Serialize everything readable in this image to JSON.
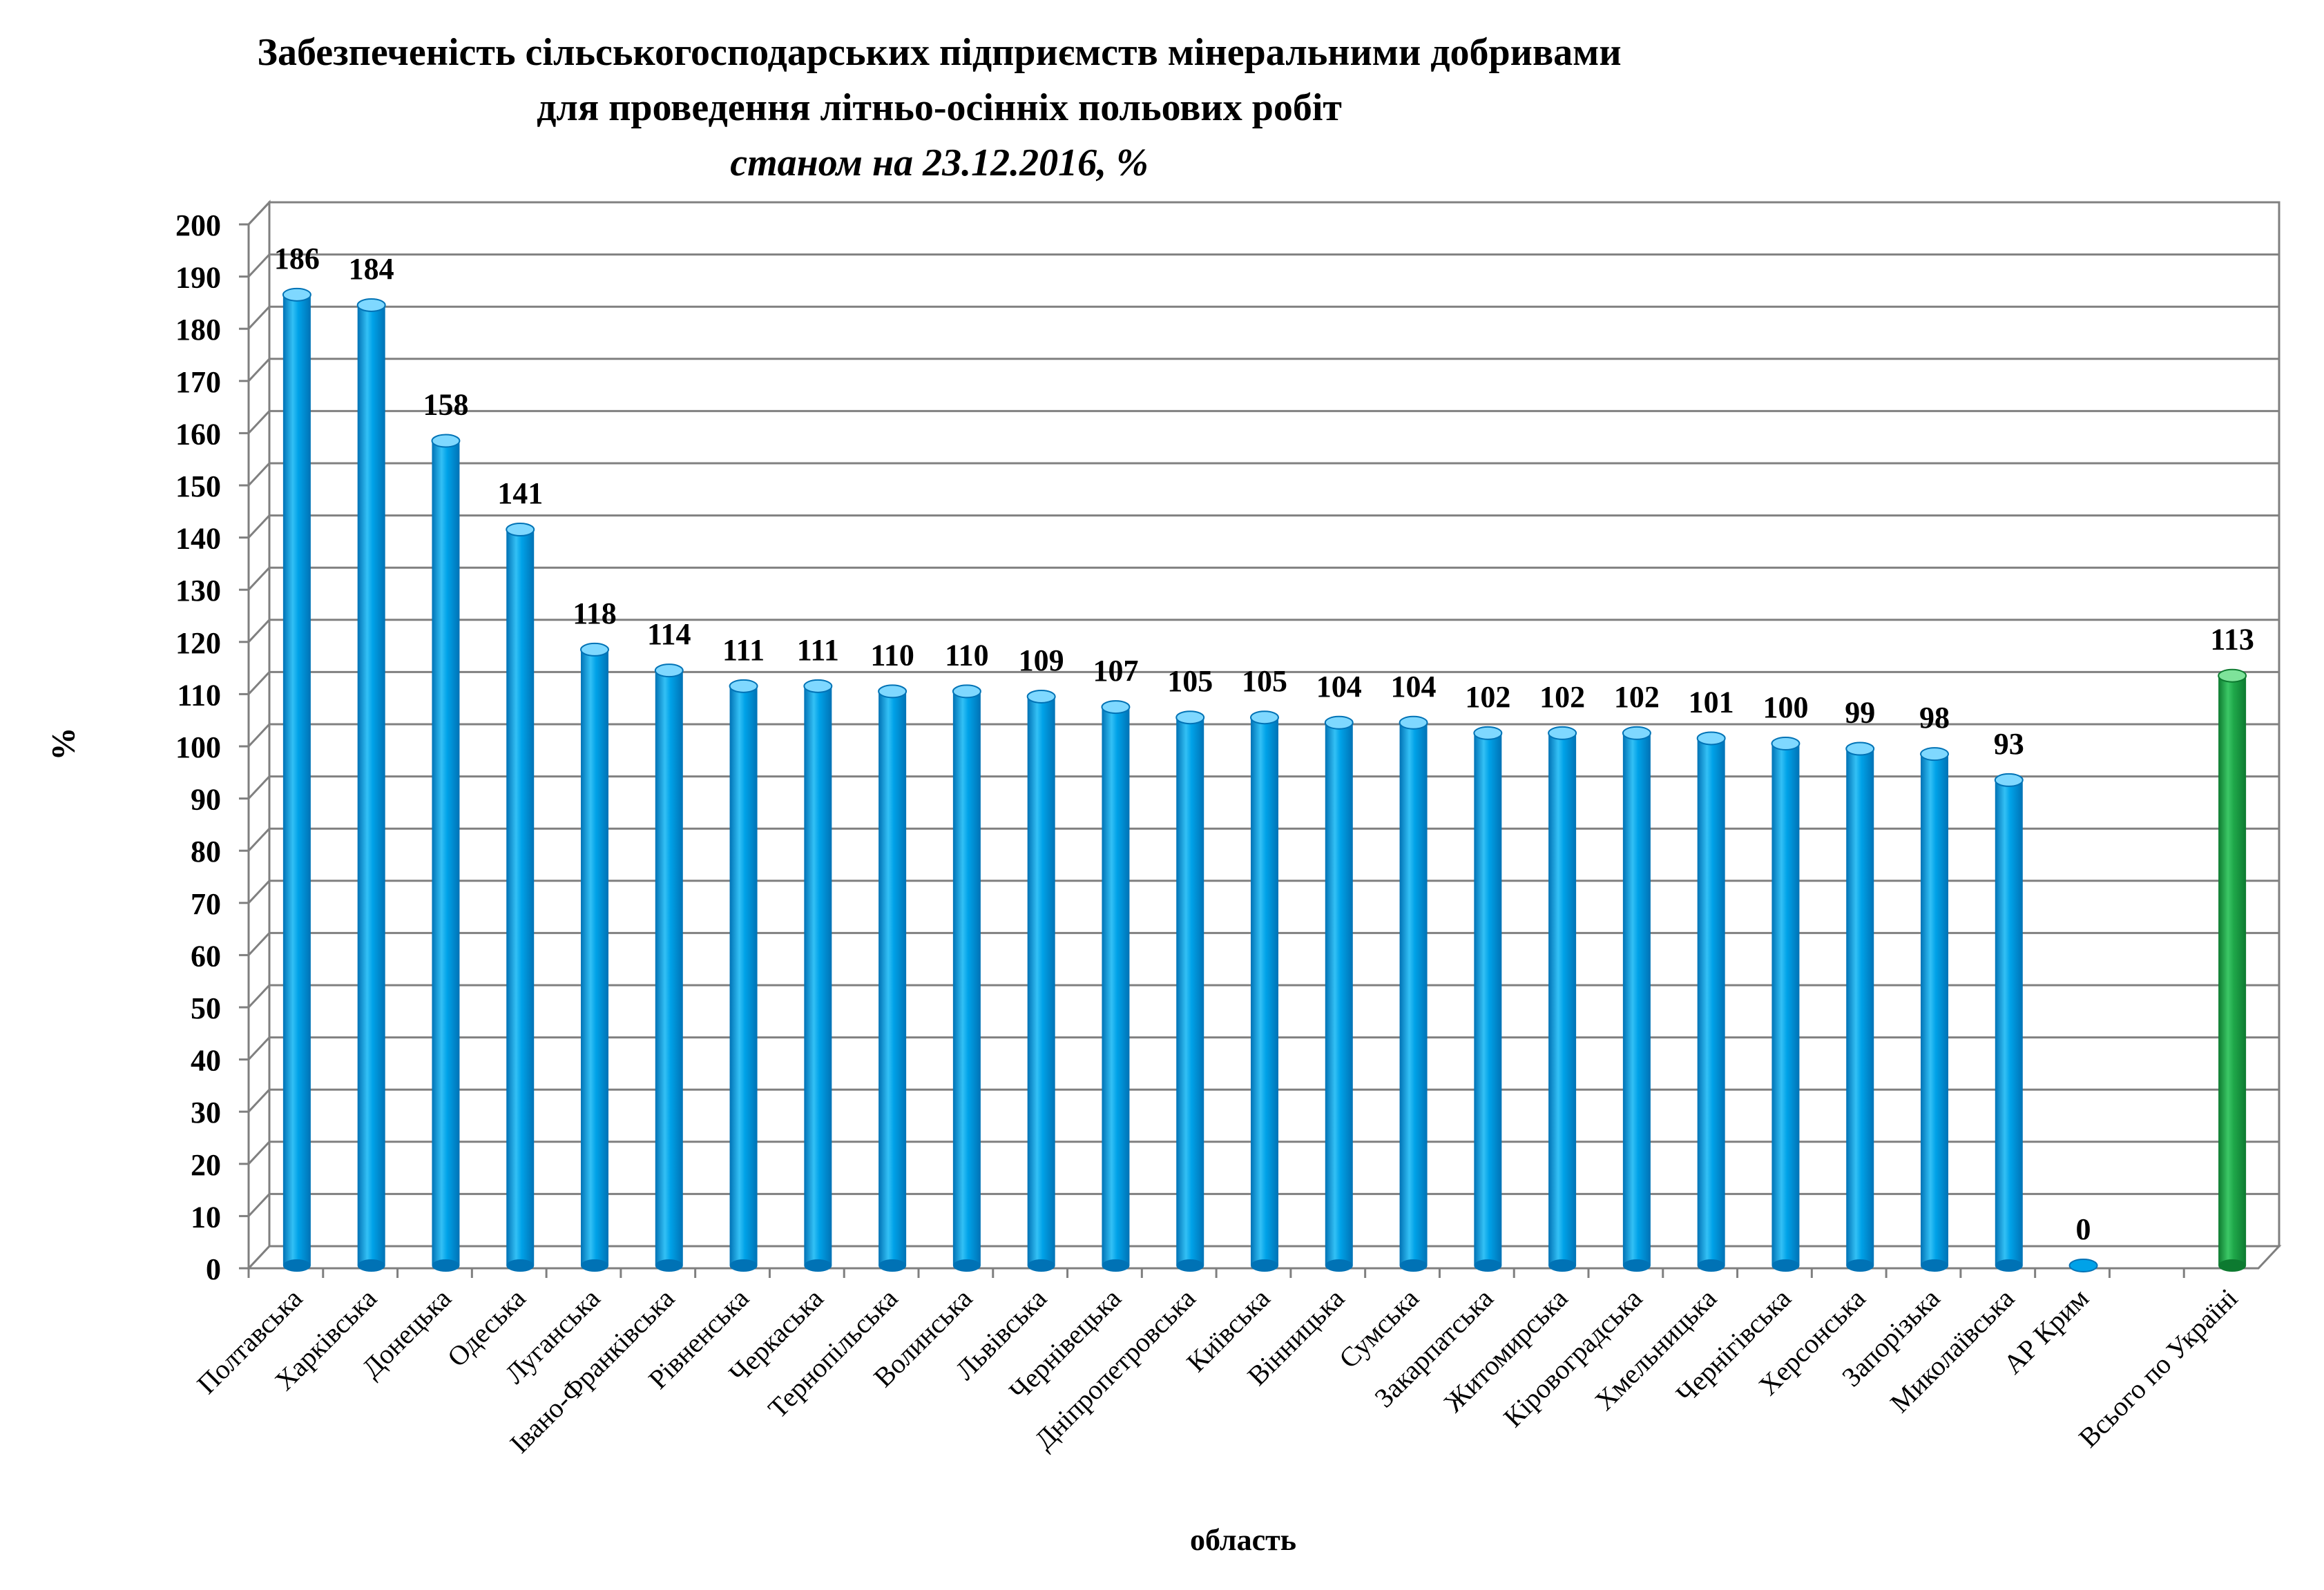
{
  "title": {
    "line1": "Забезпеченість сільськогосподарських підприємств мінеральними добривами",
    "line2": "для проведення літньо-осінніх польових робіт",
    "line3": "станом на 23.12.2016, %"
  },
  "chart_data": {
    "type": "bar",
    "title": "Забезпеченість сільськогосподарських підприємств мінеральними добривами для проведення літньо-осінніх польових робіт станом на 23.12.2016, %",
    "xlabel": "область",
    "ylabel": "%",
    "ylim": [
      0,
      200
    ],
    "ytick_step": 10,
    "grid": true,
    "categories": [
      "Полтавська",
      "Харківська",
      "Донецька",
      "Одеська",
      "Луганська",
      "Івано-Франківська",
      "Рівненська",
      "Черкаська",
      "Тернопільська",
      "Волинська",
      "Львівська",
      "Чернівецька",
      "Дніпропетровська",
      "Київська",
      "Вінницька",
      "Сумська",
      "Закарпатська",
      "Житомирська",
      "Кіровоградська",
      "Хмельницька",
      "Чернігівська",
      "Херсонська",
      "Запорізька",
      "Миколаївська",
      "АР Крим",
      "",
      "Всього по Україні"
    ],
    "values": [
      186,
      184,
      158,
      141,
      118,
      114,
      111,
      111,
      110,
      110,
      109,
      107,
      105,
      105,
      104,
      104,
      102,
      102,
      102,
      101,
      100,
      99,
      98,
      93,
      0,
      null,
      113
    ],
    "highlight_category": "Всього по Україні",
    "colors": {
      "bar": "#00a2e8",
      "bar_dark": "#0072b5",
      "bar_light": "#7fd8ff",
      "highlight": "#1fa84a",
      "highlight_dark": "#0d7a30",
      "highlight_light": "#7ee39a",
      "grid": "#808080",
      "frame": "#7f7f7f"
    }
  }
}
